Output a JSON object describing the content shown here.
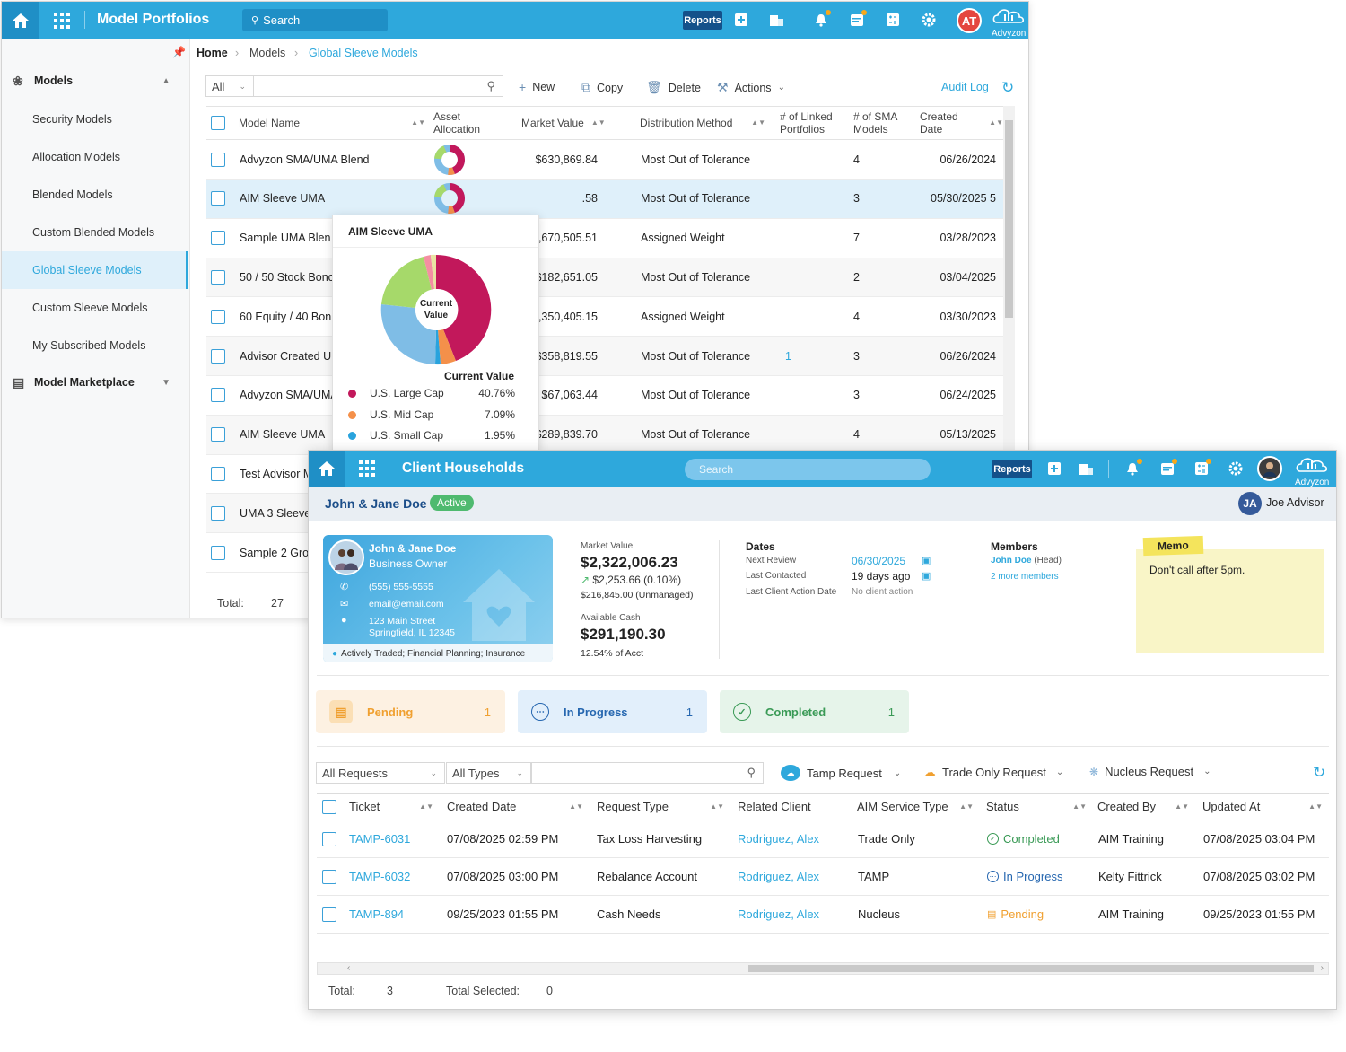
{
  "model_portfolios": {
    "app_title": "Model Portfolios",
    "search_label": "Search",
    "reports_label": "Reports",
    "user_initials": "AT",
    "brand": "Advyzon",
    "sidebar": {
      "models_header": "Models",
      "items": [
        "Security Models",
        "Allocation Models",
        "Blended Models",
        "Custom Blended Models",
        "Global Sleeve Models",
        "Custom Sleeve Models",
        "My Subscribed Models"
      ],
      "active_item": "Global Sleeve Models",
      "marketplace_header": "Model Marketplace"
    },
    "breadcrumb": [
      "Home",
      "Models",
      "Global Sleeve Models"
    ],
    "toolbar": {
      "filter_value": "All",
      "new_label": "New",
      "copy_label": "Copy",
      "delete_label": "Delete",
      "actions_label": "Actions",
      "audit_log_label": "Audit Log"
    },
    "columns": [
      "Model Name",
      "Asset Allocation",
      "Market Value",
      "Distribution Method",
      "# of Linked Portfolios",
      "# of SMA Models",
      "Created Date"
    ],
    "rows": [
      {
        "name": "Advyzon SMA/UMA Blend",
        "market_value": "$630,869.84",
        "method": "Most Out of Tolerance",
        "linked": "",
        "sma": "4",
        "created": "06/26/2024"
      },
      {
        "name": "AIM Sleeve UMA",
        "market_value": ".58",
        "method": "Most Out of Tolerance",
        "linked": "",
        "sma": "3",
        "created": "05/30/2025 5"
      },
      {
        "name": "Sample UMA Blen",
        "market_value": ",670,505.51",
        "method": "Assigned Weight",
        "linked": "",
        "sma": "7",
        "created": "03/28/2023"
      },
      {
        "name": "50 / 50 Stock Bonc",
        "market_value": "$182,651.05",
        "method": "Most Out of Tolerance",
        "linked": "",
        "sma": "2",
        "created": "03/04/2025"
      },
      {
        "name": "60 Equity / 40 Bon",
        "market_value": "3,350,405.15",
        "method": "Assigned Weight",
        "linked": "",
        "sma": "4",
        "created": "03/30/2023"
      },
      {
        "name": "Advisor Created UI",
        "market_value": "$358,819.55",
        "method": "Most Out of Tolerance",
        "linked": "1",
        "sma": "3",
        "created": "06/26/2024"
      },
      {
        "name": "Advyzon SMA/UMA",
        "market_value": "$67,063.44",
        "method": "Most Out of Tolerance",
        "linked": "",
        "sma": "3",
        "created": "06/24/2025"
      },
      {
        "name": "AIM Sleeve UMA",
        "market_value": "$289,839.70",
        "method": "Most Out of Tolerance",
        "linked": "",
        "sma": "4",
        "created": "05/13/2025"
      },
      {
        "name": "Test Advisor M",
        "market_value": "",
        "method": "",
        "linked": "",
        "sma": "",
        "created": ""
      },
      {
        "name": "UMA 3 Sleeve",
        "market_value": "",
        "method": "",
        "linked": "",
        "sma": "",
        "created": ""
      },
      {
        "name": "Sample 2 Grov",
        "market_value": "",
        "method": "",
        "linked": "",
        "sma": "",
        "created": ""
      }
    ],
    "total_label": "Total:",
    "total_value": "27",
    "tooltip": {
      "title": "AIM Sleeve UMA",
      "center_label_1": "Current",
      "center_label_2": "Value",
      "legend_header": "Current Value",
      "legend": [
        {
          "name": "U.S. Large Cap",
          "pct": "40.76%",
          "color": "#c2185b"
        },
        {
          "name": "U.S. Mid Cap",
          "pct": "7.09%",
          "color": "#f4904a"
        },
        {
          "name": "U.S. Small Cap",
          "pct": "1.95%",
          "color": "#29a3dd"
        }
      ]
    }
  },
  "client_households": {
    "app_title": "Client Households",
    "search_placeholder": "Search",
    "reports_label": "Reports",
    "brand": "Advyzon",
    "household_name": "John & Jane Doe",
    "status_pill": "Active",
    "advisor_initials": "JA",
    "advisor_name": "Joe Advisor",
    "card": {
      "name": "John & Jane Doe",
      "occupation": "Business Owner",
      "phone": "(555) 555-5555",
      "email": "email@email.com",
      "address_1": "123 Main Street",
      "address_2": "Springfield, IL 12345",
      "tags": "Actively Traded; Financial Planning; Insurance"
    },
    "market_value_label": "Market Value",
    "market_value": "$2,322,006.23",
    "market_change": "$2,253.66 (0.10%)",
    "unmanaged": "$216,845.00 (Unmanaged)",
    "available_cash_label": "Available Cash",
    "available_cash": "$291,190.30",
    "cash_pct": "12.54% of Acct",
    "dates_header": "Dates",
    "next_review_label": "Next Review",
    "next_review": "06/30/2025",
    "last_contacted_label": "Last Contacted",
    "last_contacted": "19 days ago",
    "last_action_label": "Last Client Action Date",
    "last_action": "No client action",
    "members_header": "Members",
    "member_head_name": "John Doe",
    "member_head_role": "(Head)",
    "more_members": "2 more members",
    "memo_tag": "Memo",
    "memo_text": "Don't call after 5pm.",
    "status_cards": [
      {
        "label": "Pending",
        "count": "1"
      },
      {
        "label": "In Progress",
        "count": "1"
      },
      {
        "label": "Completed",
        "count": "1"
      }
    ],
    "filters": {
      "requests": "All Requests",
      "types": "All Types",
      "tamp_request": "Tamp Request",
      "trade_only_request": "Trade Only Request",
      "nucleus_request": "Nucleus Request"
    },
    "columns": [
      "Ticket",
      "Created Date",
      "Request Type",
      "Related Client",
      "AIM Service Type",
      "Status",
      "Created By",
      "Updated At"
    ],
    "rows": [
      {
        "ticket": "TAMP-6031",
        "created": "07/08/2025 02:59 PM",
        "type": "Tax Loss Harvesting",
        "client": "Rodriguez, Alex",
        "service": "Trade Only",
        "status": "Completed",
        "by": "AIM Training",
        "updated": "07/08/2025 03:04 PM"
      },
      {
        "ticket": "TAMP-6032",
        "created": "07/08/2025 03:00 PM",
        "type": "Rebalance Account",
        "client": "Rodriguez, Alex",
        "service": "TAMP",
        "status": "In Progress",
        "by": "Kelty Fittrick",
        "updated": "07/08/2025 03:02 PM"
      },
      {
        "ticket": "TAMP-894",
        "created": "09/25/2023 01:55 PM",
        "type": "Cash Needs",
        "client": "Rodriguez, Alex",
        "service": "Nucleus",
        "status": "Pending",
        "by": "AIM Training",
        "updated": "09/25/2023 01:55 PM"
      }
    ],
    "total_label": "Total:",
    "total_value": "3",
    "selected_label": "Total Selected:",
    "selected_value": "0"
  }
}
